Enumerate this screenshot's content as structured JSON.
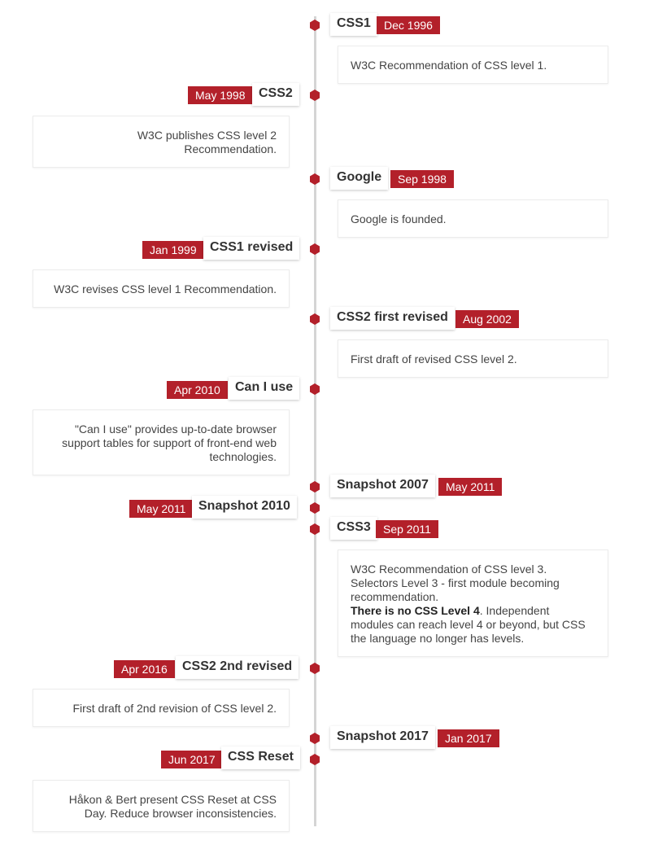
{
  "events": [
    {
      "title": "CSS1",
      "date": "Dec 1996",
      "desc": "W3C Recommendation of CSS level 1."
    },
    {
      "title": "CSS2",
      "date": "May 1998",
      "desc": "W3C publishes CSS level 2 Recommendation."
    },
    {
      "title": "Google",
      "date": "Sep 1998",
      "desc": "Google is founded."
    },
    {
      "title": "CSS1 revised",
      "date": "Jan 1999",
      "desc": "W3C revises CSS level 1 Recommendation."
    },
    {
      "title": "CSS2 first revised",
      "date": "Aug 2002",
      "desc": "First draft of revised CSS level 2."
    },
    {
      "title": "Can I use",
      "date": "Apr 2010",
      "desc": "\"Can I use\" provides up-to-date browser support tables for support of front-end web technologies."
    },
    {
      "title": "Snapshot 2007",
      "date": "May 2011"
    },
    {
      "title": "Snapshot 2010",
      "date": "May 2011"
    },
    {
      "title": "CSS3",
      "date": "Sep 2011",
      "desc": "W3C Recommendation of CSS level 3. Selectors Level 3 - first module becoming recommendation.",
      "desc_bold": "There is no CSS Level 4",
      "desc_after": ". Independent modules can reach level 4 or beyond, but CSS the language no longer has levels."
    },
    {
      "title": "CSS2 2nd revised",
      "date": "Apr 2016",
      "desc": "First draft of 2nd revision of CSS level 2."
    },
    {
      "title": "Snapshot 2017",
      "date": "Jan 2017"
    },
    {
      "title": "CSS Reset",
      "date": "Jun 2017",
      "desc": "Håkon & Bert present CSS Reset at CSS Day. Reduce browser inconsistencies."
    }
  ],
  "colors": {
    "accent": "#b3202a",
    "line": "#d5d5d5"
  }
}
